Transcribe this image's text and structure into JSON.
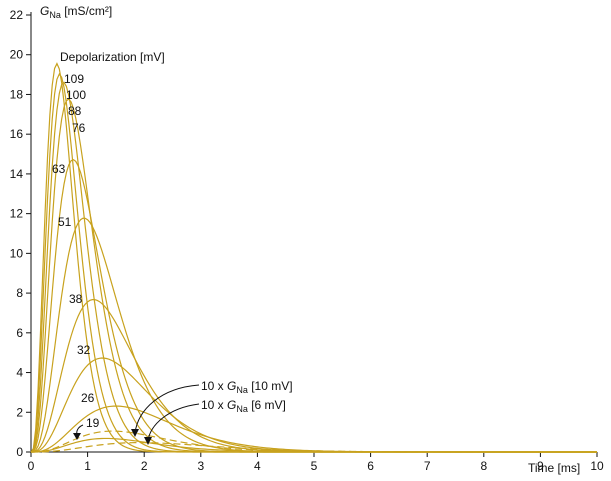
{
  "chart_data": {
    "type": "line",
    "ylabel_main": "G",
    "ylabel_sub": "Na",
    "ylabel_unit": "[mS/cm²]",
    "xlabel": "Time [ms]",
    "xlim": [
      0,
      10
    ],
    "ylim": [
      0,
      22
    ],
    "x_ticks": [
      "0",
      "1",
      "2",
      "3",
      "4",
      "5",
      "6",
      "7",
      "8",
      "9",
      "10"
    ],
    "y_ticks": [
      "0",
      "2",
      "4",
      "6",
      "8",
      "10",
      "12",
      "14",
      "16",
      "18",
      "20",
      "22"
    ],
    "grid": false,
    "legend_title": "Depolarization [mV]",
    "color": "#c8a21e",
    "series": [
      {
        "name": "109",
        "peak_time": 0.38,
        "peak_value": 18.6,
        "style": "solid"
      },
      {
        "name": "100",
        "peak_time": 0.42,
        "peak_value": 18.1,
        "style": "solid"
      },
      {
        "name": "88",
        "peak_time": 0.48,
        "peak_value": 17.7,
        "style": "solid"
      },
      {
        "name": "76",
        "peak_time": 0.55,
        "peak_value": 16.9,
        "style": "solid"
      },
      {
        "name": "63",
        "peak_time": 0.62,
        "peak_value": 14.0,
        "style": "solid"
      },
      {
        "name": "51",
        "peak_time": 0.78,
        "peak_value": 11.2,
        "style": "solid"
      },
      {
        "name": "38",
        "peak_time": 0.92,
        "peak_value": 7.3,
        "style": "solid"
      },
      {
        "name": "32",
        "peak_time": 1.05,
        "peak_value": 4.5,
        "style": "solid"
      },
      {
        "name": "26",
        "peak_time": 1.25,
        "peak_value": 2.2,
        "style": "solid"
      },
      {
        "name": "19",
        "peak_time": 1.1,
        "peak_value": 0.65,
        "style": "solid"
      },
      {
        "name": "10 x G_Na [10 mV]",
        "peak_time": 1.2,
        "peak_value": 1.0,
        "style": "dashed"
      },
      {
        "name": "10 x G_Na [6 mV]",
        "peak_time": 1.6,
        "peak_value": 0.45,
        "style": "dashed"
      }
    ],
    "annotations": {
      "pre": "10 x ",
      "g": "G",
      "sub": "Na",
      "a1_suffix": " [10 mV]",
      "a2_suffix": " [6 mV]"
    }
  }
}
